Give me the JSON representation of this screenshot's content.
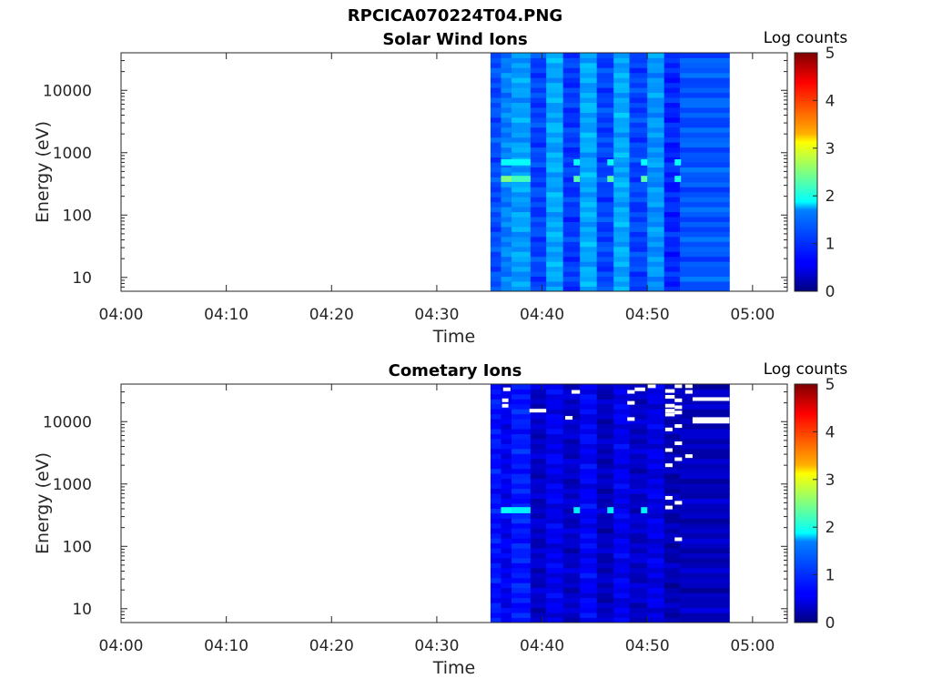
{
  "figure": {
    "title": "RPCICA070224T04.PNG"
  },
  "chart_data": [
    {
      "type": "heatmap",
      "title": "Solar Wind Ions",
      "xlabel": "Time",
      "ylabel": "Energy (eV)",
      "x_ticks": [
        "04:00",
        "04:10",
        "04:20",
        "04:30",
        "04:40",
        "04:50",
        "05:00"
      ],
      "xlim_minutes": [
        0,
        63.3
      ],
      "y_scale": "log",
      "y_ticks": [
        10,
        100,
        1000,
        10000
      ],
      "y_tick_labels": [
        "10",
        "100",
        "1000",
        "10000"
      ],
      "ylim": [
        6,
        40000
      ],
      "colorbar": {
        "label": "Log counts",
        "range": [
          0,
          5
        ],
        "ticks": [
          "0",
          "1",
          "2",
          "3",
          "4",
          "5"
        ]
      },
      "data_extent_minutes": [
        35.1,
        57.8
      ],
      "columns": [
        {
          "t0": 35.1,
          "t1": 36.1,
          "level": 1.0
        },
        {
          "t0": 36.1,
          "t1": 37.1,
          "level": 1.25
        },
        {
          "t0": 37.1,
          "t1": 38.9,
          "level": 1.4
        },
        {
          "t0": 38.9,
          "t1": 40.4,
          "level": 0.95
        },
        {
          "t0": 40.4,
          "t1": 42.0,
          "level": 1.45
        },
        {
          "t0": 42.0,
          "t1": 43.6,
          "level": 0.9
        },
        {
          "t0": 43.6,
          "t1": 45.2,
          "level": 1.45
        },
        {
          "t0": 45.2,
          "t1": 46.8,
          "level": 0.95
        },
        {
          "t0": 46.8,
          "t1": 48.3,
          "level": 1.45
        },
        {
          "t0": 48.3,
          "t1": 50.0,
          "level": 0.95
        },
        {
          "t0": 50.0,
          "t1": 51.6,
          "level": 1.35
        },
        {
          "t0": 51.6,
          "t1": 53.1,
          "level": 0.8
        },
        {
          "t0": 53.1,
          "t1": 57.8,
          "level": 1.05
        }
      ],
      "hotspots": [
        {
          "t0": 36.1,
          "t1": 38.9,
          "e": 700,
          "level": 1.9
        },
        {
          "t0": 36.1,
          "t1": 37.1,
          "e": 380,
          "level": 2.5
        },
        {
          "t0": 37.1,
          "t1": 38.9,
          "e": 380,
          "level": 2.2
        },
        {
          "t0": 43.0,
          "t1": 43.6,
          "e": 700,
          "level": 1.9
        },
        {
          "t0": 43.0,
          "t1": 43.6,
          "e": 380,
          "level": 2.3
        },
        {
          "t0": 46.2,
          "t1": 46.8,
          "e": 700,
          "level": 1.9
        },
        {
          "t0": 46.2,
          "t1": 46.8,
          "e": 380,
          "level": 2.3
        },
        {
          "t0": 49.4,
          "t1": 50.0,
          "e": 700,
          "level": 1.9
        },
        {
          "t0": 49.4,
          "t1": 50.0,
          "e": 380,
          "level": 2.3
        },
        {
          "t0": 52.6,
          "t1": 53.2,
          "e": 700,
          "level": 1.9
        },
        {
          "t0": 52.6,
          "t1": 53.2,
          "e": 380,
          "level": 2.0
        }
      ]
    },
    {
      "type": "heatmap",
      "title": "Cometary Ions",
      "xlabel": "Time",
      "ylabel": "Energy (eV)",
      "x_ticks": [
        "04:00",
        "04:10",
        "04:20",
        "04:30",
        "04:40",
        "04:50",
        "05:00"
      ],
      "xlim_minutes": [
        0,
        63.3
      ],
      "y_scale": "log",
      "y_ticks": [
        10,
        100,
        1000,
        10000
      ],
      "y_tick_labels": [
        "10",
        "100",
        "1000",
        "10000"
      ],
      "ylim": [
        6,
        40000
      ],
      "colorbar": {
        "label": "Log counts",
        "range": [
          0,
          5
        ],
        "ticks": [
          "0",
          "1",
          "2",
          "3",
          "4",
          "5"
        ]
      },
      "data_extent_minutes": [
        35.1,
        57.8
      ],
      "columns": [
        {
          "t0": 35.1,
          "t1": 36.1,
          "level": 0.7
        },
        {
          "t0": 36.1,
          "t1": 37.1,
          "level": 0.55
        },
        {
          "t0": 37.1,
          "t1": 38.9,
          "level": 0.75
        },
        {
          "t0": 38.9,
          "t1": 40.4,
          "level": 0.35
        },
        {
          "t0": 40.4,
          "t1": 42.0,
          "level": 0.55
        },
        {
          "t0": 42.0,
          "t1": 43.6,
          "level": 0.35
        },
        {
          "t0": 43.6,
          "t1": 45.2,
          "level": 0.6
        },
        {
          "t0": 45.2,
          "t1": 46.8,
          "level": 0.3
        },
        {
          "t0": 46.8,
          "t1": 48.3,
          "level": 0.55
        },
        {
          "t0": 48.3,
          "t1": 50.0,
          "level": 0.35
        },
        {
          "t0": 50.0,
          "t1": 51.6,
          "level": 0.5
        },
        {
          "t0": 51.6,
          "t1": 53.1,
          "level": 0.25
        },
        {
          "t0": 53.1,
          "t1": 57.8,
          "level": 0.3
        }
      ],
      "hotspots": [
        {
          "t0": 36.1,
          "t1": 37.1,
          "e": 380,
          "level": 1.9
        },
        {
          "t0": 37.1,
          "t1": 38.9,
          "e": 380,
          "level": 1.8
        },
        {
          "t0": 43.0,
          "t1": 43.6,
          "e": 380,
          "level": 1.8
        },
        {
          "t0": 46.2,
          "t1": 46.8,
          "e": 380,
          "level": 1.8
        },
        {
          "t0": 49.4,
          "t1": 50.0,
          "e": 380,
          "level": 1.8
        }
      ],
      "white_marks": [
        {
          "t0": 36.3,
          "t1": 37.0,
          "e": 33000
        },
        {
          "t0": 36.2,
          "t1": 36.8,
          "e": 22000
        },
        {
          "t0": 36.2,
          "t1": 36.8,
          "e": 18000
        },
        {
          "t0": 38.8,
          "t1": 40.4,
          "e": 15000
        },
        {
          "t0": 42.2,
          "t1": 42.9,
          "e": 11500
        },
        {
          "t0": 42.8,
          "t1": 43.6,
          "e": 30000
        },
        {
          "t0": 48.1,
          "t1": 48.8,
          "e": 30000
        },
        {
          "t0": 48.8,
          "t1": 49.8,
          "e": 33000
        },
        {
          "t0": 48.1,
          "t1": 48.8,
          "e": 20000
        },
        {
          "t0": 48.1,
          "t1": 48.8,
          "e": 11000
        },
        {
          "t0": 50.0,
          "t1": 50.8,
          "e": 37000
        },
        {
          "t0": 51.7,
          "t1": 52.6,
          "e": 31000
        },
        {
          "t0": 51.7,
          "t1": 52.6,
          "e": 25000
        },
        {
          "t0": 51.7,
          "t1": 52.6,
          "e": 18000
        },
        {
          "t0": 51.7,
          "t1": 52.6,
          "e": 15000
        },
        {
          "t0": 51.7,
          "t1": 52.6,
          "e": 13000
        },
        {
          "t0": 51.7,
          "t1": 52.4,
          "e": 7500
        },
        {
          "t0": 51.7,
          "t1": 52.4,
          "e": 3500
        },
        {
          "t0": 51.7,
          "t1": 52.4,
          "e": 2000
        },
        {
          "t0": 51.7,
          "t1": 52.4,
          "e": 600
        },
        {
          "t0": 51.7,
          "t1": 52.4,
          "e": 420
        },
        {
          "t0": 52.6,
          "t1": 53.3,
          "e": 37000
        },
        {
          "t0": 52.6,
          "t1": 53.3,
          "e": 22000
        },
        {
          "t0": 52.6,
          "t1": 53.3,
          "e": 17000
        },
        {
          "t0": 52.6,
          "t1": 53.3,
          "e": 14000
        },
        {
          "t0": 52.6,
          "t1": 53.3,
          "e": 8500
        },
        {
          "t0": 52.6,
          "t1": 53.3,
          "e": 4500
        },
        {
          "t0": 52.6,
          "t1": 53.3,
          "e": 2500
        },
        {
          "t0": 52.6,
          "t1": 53.3,
          "e": 500
        },
        {
          "t0": 52.6,
          "t1": 53.3,
          "e": 130
        },
        {
          "t0": 53.6,
          "t1": 54.3,
          "e": 37000
        },
        {
          "t0": 53.6,
          "t1": 54.3,
          "e": 30000
        },
        {
          "t0": 53.6,
          "t1": 54.3,
          "e": 2800
        },
        {
          "t0": 54.3,
          "t1": 57.8,
          "e": 23000
        },
        {
          "t0": 54.3,
          "t1": 57.8,
          "e": 11000
        },
        {
          "t0": 54.3,
          "t1": 57.8,
          "e": 10000
        }
      ]
    }
  ]
}
